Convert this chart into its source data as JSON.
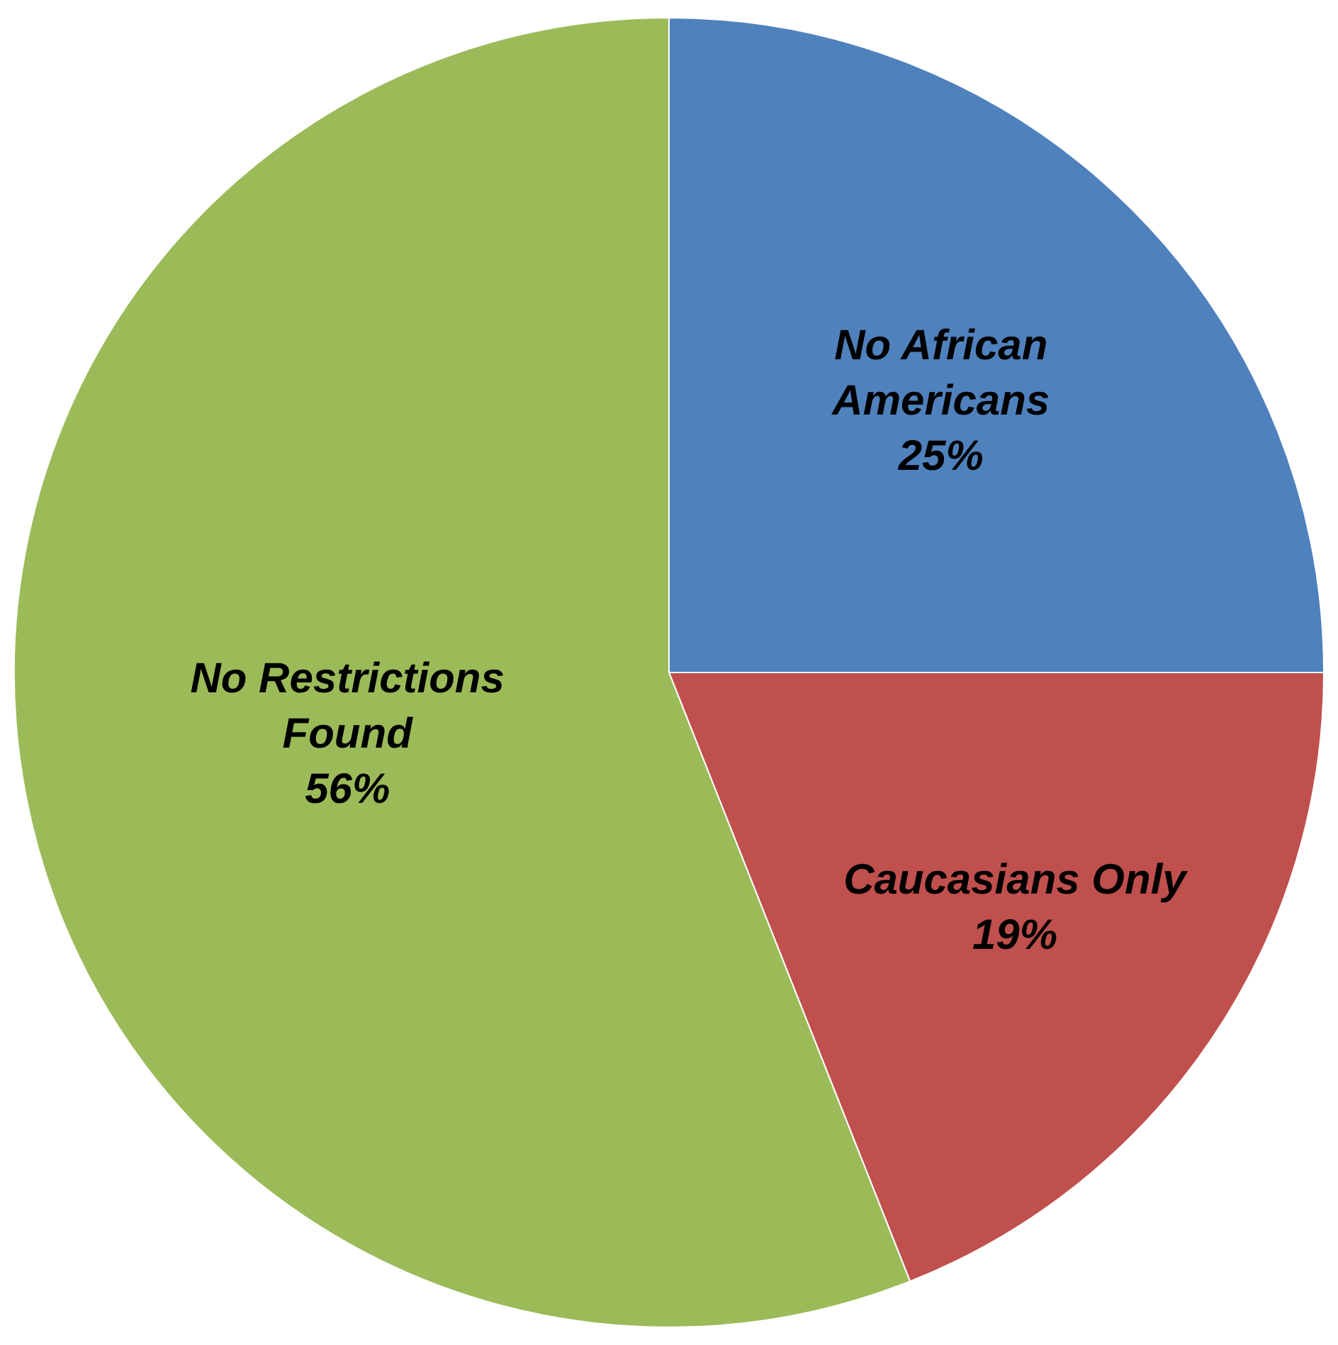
{
  "chart_data": {
    "type": "pie",
    "categories": [
      "No African Americans",
      "Caucasians Only",
      "No Restrictions Found"
    ],
    "values": [
      25,
      19,
      56
    ],
    "value_labels": [
      "25%",
      "19%",
      "56%"
    ],
    "colors": [
      "#4f81bd",
      "#c0504d",
      "#9bbb59"
    ],
    "legend": false
  }
}
